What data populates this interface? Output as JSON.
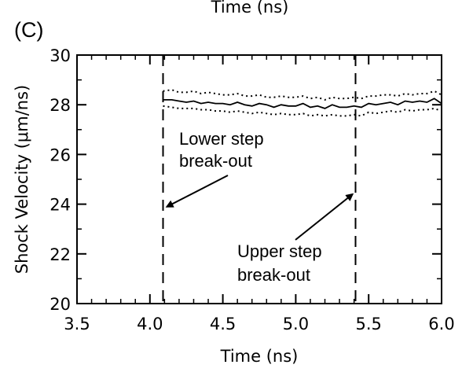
{
  "top_cut_label": "Time (ns)",
  "panel_label": "(C)",
  "chart_data": {
    "type": "line",
    "xlabel": "Time (ns)",
    "ylabel": "Shock Velocity (μm/ns)",
    "xlim": [
      3.5,
      6.0
    ],
    "ylim": [
      20,
      30
    ],
    "xticks": [
      "3.5",
      "4.0",
      "4.5",
      "5.0",
      "5.5",
      "6.0"
    ],
    "yticks": [
      "20",
      "22",
      "24",
      "26",
      "28",
      "30"
    ],
    "grid": false,
    "series": [
      {
        "role": "mean",
        "style": "solid",
        "x": [
          4.09,
          4.15,
          4.2,
          4.25,
          4.3,
          4.35,
          4.4,
          4.45,
          4.5,
          4.55,
          4.6,
          4.65,
          4.7,
          4.75,
          4.8,
          4.85,
          4.9,
          4.95,
          5.0,
          5.05,
          5.1,
          5.15,
          5.2,
          5.25,
          5.3,
          5.35,
          5.4,
          5.45,
          5.5,
          5.55,
          5.6,
          5.65,
          5.7,
          5.75,
          5.8,
          5.85,
          5.9,
          5.95,
          6.0
        ],
        "y": [
          28.2,
          28.2,
          28.15,
          28.1,
          28.15,
          28.05,
          28.1,
          28.05,
          28.05,
          28.0,
          28.1,
          28.0,
          27.95,
          28.05,
          28.0,
          27.9,
          28.0,
          27.95,
          27.95,
          28.05,
          27.9,
          27.95,
          27.85,
          28.0,
          27.9,
          27.9,
          27.95,
          27.9,
          28.05,
          28.0,
          28.05,
          28.1,
          28.0,
          28.15,
          28.1,
          28.15,
          28.1,
          28.25,
          28.05
        ]
      },
      {
        "role": "upper-bound",
        "style": "dotted",
        "x": [
          4.09,
          4.15,
          4.2,
          4.25,
          4.3,
          4.35,
          4.4,
          4.45,
          4.5,
          4.55,
          4.6,
          4.65,
          4.7,
          4.75,
          4.8,
          4.85,
          4.9,
          4.95,
          5.0,
          5.05,
          5.1,
          5.15,
          5.2,
          5.25,
          5.3,
          5.35,
          5.4,
          5.45,
          5.5,
          5.55,
          5.6,
          5.65,
          5.7,
          5.75,
          5.8,
          5.85,
          5.9,
          5.95,
          6.0
        ],
        "y": [
          28.55,
          28.6,
          28.5,
          28.5,
          28.55,
          28.45,
          28.5,
          28.45,
          28.4,
          28.4,
          28.45,
          28.35,
          28.35,
          28.4,
          28.3,
          28.3,
          28.35,
          28.3,
          28.3,
          28.35,
          28.25,
          28.3,
          28.2,
          28.3,
          28.25,
          28.25,
          28.3,
          28.25,
          28.35,
          28.35,
          28.4,
          28.4,
          28.35,
          28.45,
          28.4,
          28.45,
          28.45,
          28.55,
          28.4
        ]
      },
      {
        "role": "lower-bound",
        "style": "dotted",
        "x": [
          4.09,
          4.15,
          4.2,
          4.25,
          4.3,
          4.35,
          4.4,
          4.45,
          4.5,
          4.55,
          4.6,
          4.65,
          4.7,
          4.75,
          4.8,
          4.85,
          4.9,
          4.95,
          5.0,
          5.05,
          5.1,
          5.15,
          5.2,
          5.25,
          5.3,
          5.35,
          5.4,
          5.45,
          5.5,
          5.55,
          5.6,
          5.65,
          5.7,
          5.75,
          5.8,
          5.85,
          5.9,
          5.95,
          6.0
        ],
        "y": [
          27.95,
          27.9,
          27.85,
          27.85,
          27.85,
          27.8,
          27.8,
          27.75,
          27.75,
          27.7,
          27.75,
          27.7,
          27.65,
          27.7,
          27.65,
          27.6,
          27.65,
          27.6,
          27.6,
          27.65,
          27.55,
          27.6,
          27.55,
          27.6,
          27.55,
          27.55,
          27.6,
          27.55,
          27.7,
          27.65,
          27.7,
          27.75,
          27.7,
          27.8,
          27.75,
          27.8,
          27.8,
          27.85,
          27.75
        ]
      }
    ],
    "vlines": [
      {
        "x": 4.09,
        "style": "dashed"
      },
      {
        "x": 5.41,
        "style": "dashed"
      }
    ],
    "annotations": [
      {
        "text_lines": [
          "Lower step",
          "break-out"
        ],
        "arrow_to": {
          "x": 4.1,
          "y": 23.9
        }
      },
      {
        "text_lines": [
          "Upper step",
          "break-out"
        ],
        "arrow_to": {
          "x": 5.4,
          "y": 24.4
        }
      }
    ]
  }
}
